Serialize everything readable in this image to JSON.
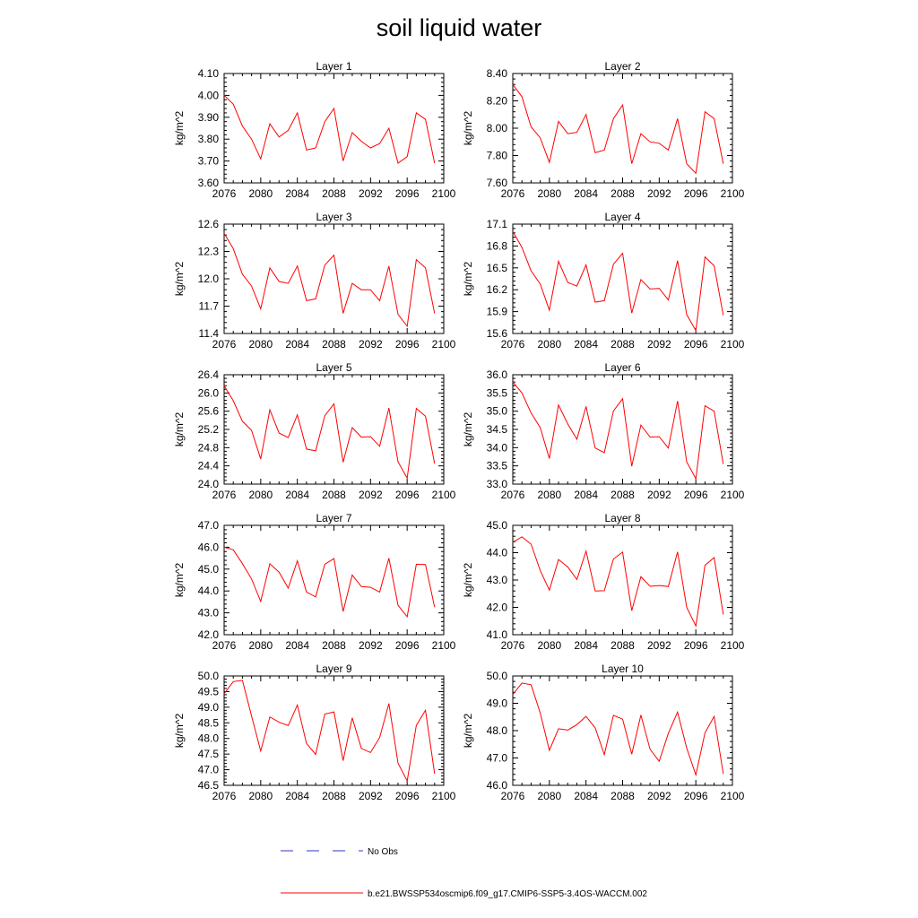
{
  "title": "soil liquid water",
  "legend": [
    {
      "label": "No Obs",
      "color": "#3333cc",
      "style": "dashed"
    },
    {
      "label": "b.e21.BWSSP534oscmip6.f09_g17.CMIP6-SSP5-3.4OS-WACCM.002",
      "color": "#ff0000",
      "style": "solid"
    }
  ],
  "chart_data": [
    {
      "type": "line",
      "title": "Layer 1",
      "ylabel": "kg/m^2",
      "xlim": [
        2076,
        2100
      ],
      "xticks": [
        "2076",
        "2080",
        "2084",
        "2088",
        "2092",
        "2096",
        "2100"
      ],
      "ylim": [
        3.6,
        4.1
      ],
      "yticks": [
        "3.60",
        "3.70",
        "3.80",
        "3.90",
        "4.00",
        "4.10"
      ],
      "x": [
        2076,
        2077,
        2078,
        2079,
        2080,
        2081,
        2082,
        2083,
        2084,
        2085,
        2086,
        2087,
        2088,
        2089,
        2090,
        2091,
        2092,
        2093,
        2094,
        2095,
        2096,
        2097,
        2098,
        2099
      ],
      "series": [
        {
          "name": "b.e21.BWSSP534oscmip6.f09_g17.CMIP6-SSP5-3.4OS-WACCM.002",
          "color": "#ff0000",
          "values": [
            4.0,
            3.96,
            3.86,
            3.8,
            3.71,
            3.87,
            3.81,
            3.84,
            3.92,
            3.75,
            3.76,
            3.88,
            3.94,
            3.7,
            3.83,
            3.79,
            3.76,
            3.78,
            3.85,
            3.69,
            3.72,
            3.92,
            3.89,
            3.69
          ]
        }
      ]
    },
    {
      "type": "line",
      "title": "Layer 2",
      "ylabel": "kg/m^2",
      "xlim": [
        2076,
        2100
      ],
      "xticks": [
        "2076",
        "2080",
        "2084",
        "2088",
        "2092",
        "2096",
        "2100"
      ],
      "ylim": [
        7.6,
        8.4
      ],
      "yticks": [
        "7.60",
        "7.80",
        "8.00",
        "8.20",
        "8.40"
      ],
      "x": [
        2076,
        2077,
        2078,
        2079,
        2080,
        2081,
        2082,
        2083,
        2084,
        2085,
        2086,
        2087,
        2088,
        2089,
        2090,
        2091,
        2092,
        2093,
        2094,
        2095,
        2096,
        2097,
        2098,
        2099
      ],
      "series": [
        {
          "name": "b.e21.BWSSP534oscmip6.f09_g17.CMIP6-SSP5-3.4OS-WACCM.002",
          "color": "#ff0000",
          "values": [
            8.32,
            8.23,
            8.01,
            7.93,
            7.75,
            8.05,
            7.96,
            7.97,
            8.1,
            7.82,
            7.84,
            8.07,
            8.17,
            7.74,
            7.96,
            7.9,
            7.89,
            7.84,
            8.07,
            7.74,
            7.67,
            8.12,
            8.07,
            7.74
          ]
        }
      ]
    },
    {
      "type": "line",
      "title": "Layer 3",
      "ylabel": "kg/m^2",
      "xlim": [
        2076,
        2100
      ],
      "xticks": [
        "2076",
        "2080",
        "2084",
        "2088",
        "2092",
        "2096",
        "2100"
      ],
      "ylim": [
        11.4,
        12.6
      ],
      "yticks": [
        "11.4",
        "11.7",
        "12.0",
        "12.3",
        "12.6"
      ],
      "x": [
        2076,
        2077,
        2078,
        2079,
        2080,
        2081,
        2082,
        2083,
        2084,
        2085,
        2086,
        2087,
        2088,
        2089,
        2090,
        2091,
        2092,
        2093,
        2094,
        2095,
        2096,
        2097,
        2098,
        2099
      ],
      "series": [
        {
          "name": "b.e21.BWSSP534oscmip6.f09_g17.CMIP6-SSP5-3.4OS-WACCM.002",
          "color": "#ff0000",
          "values": [
            12.5,
            12.33,
            12.05,
            11.92,
            11.67,
            12.12,
            11.97,
            11.95,
            12.14,
            11.76,
            11.78,
            12.15,
            12.26,
            11.62,
            11.95,
            11.88,
            11.88,
            11.76,
            12.14,
            11.61,
            11.48,
            12.21,
            12.12,
            11.62
          ]
        }
      ]
    },
    {
      "type": "line",
      "title": "Layer 4",
      "ylabel": "kg/m^2",
      "xlim": [
        2076,
        2100
      ],
      "xticks": [
        "2076",
        "2080",
        "2084",
        "2088",
        "2092",
        "2096",
        "2100"
      ],
      "ylim": [
        15.6,
        17.1
      ],
      "yticks": [
        "15.6",
        "15.9",
        "16.2",
        "16.5",
        "16.8",
        "17.1"
      ],
      "x": [
        2076,
        2077,
        2078,
        2079,
        2080,
        2081,
        2082,
        2083,
        2084,
        2085,
        2086,
        2087,
        2088,
        2089,
        2090,
        2091,
        2092,
        2093,
        2094,
        2095,
        2096,
        2097,
        2098,
        2099
      ],
      "series": [
        {
          "name": "b.e21.BWSSP534oscmip6.f09_g17.CMIP6-SSP5-3.4OS-WACCM.002",
          "color": "#ff0000",
          "values": [
            17.0,
            16.78,
            16.46,
            16.28,
            15.92,
            16.59,
            16.3,
            16.25,
            16.54,
            16.03,
            16.05,
            16.55,
            16.7,
            15.88,
            16.34,
            16.21,
            16.22,
            16.06,
            16.6,
            15.86,
            15.64,
            16.65,
            16.53,
            15.85
          ]
        }
      ]
    },
    {
      "type": "line",
      "title": "Layer 5",
      "ylabel": "kg/m^2",
      "xlim": [
        2076,
        2100
      ],
      "xticks": [
        "2076",
        "2080",
        "2084",
        "2088",
        "2092",
        "2096",
        "2100"
      ],
      "ylim": [
        24.0,
        26.4
      ],
      "yticks": [
        "24.0",
        "24.4",
        "24.8",
        "25.2",
        "25.6",
        "26.0",
        "26.4"
      ],
      "x": [
        2076,
        2077,
        2078,
        2079,
        2080,
        2081,
        2082,
        2083,
        2084,
        2085,
        2086,
        2087,
        2088,
        2089,
        2090,
        2091,
        2092,
        2093,
        2094,
        2095,
        2096,
        2097,
        2098,
        2099
      ],
      "series": [
        {
          "name": "b.e21.BWSSP534oscmip6.f09_g17.CMIP6-SSP5-3.4OS-WACCM.002",
          "color": "#ff0000",
          "values": [
            26.16,
            25.83,
            25.38,
            25.18,
            24.55,
            25.63,
            25.12,
            25.02,
            25.52,
            24.77,
            24.73,
            25.5,
            25.76,
            24.48,
            25.24,
            25.03,
            25.04,
            24.83,
            25.67,
            24.49,
            24.13,
            25.66,
            25.49,
            24.45
          ]
        }
      ]
    },
    {
      "type": "line",
      "title": "Layer 6",
      "ylabel": "kg/m^2",
      "xlim": [
        2076,
        2100
      ],
      "xticks": [
        "2076",
        "2080",
        "2084",
        "2088",
        "2092",
        "2096",
        "2100"
      ],
      "ylim": [
        33.0,
        36.0
      ],
      "yticks": [
        "33.0",
        "33.5",
        "34.0",
        "34.5",
        "35.0",
        "35.5",
        "36.0"
      ],
      "x": [
        2076,
        2077,
        2078,
        2079,
        2080,
        2081,
        2082,
        2083,
        2084,
        2085,
        2086,
        2087,
        2088,
        2089,
        2090,
        2091,
        2092,
        2093,
        2094,
        2095,
        2096,
        2097,
        2098,
        2099
      ],
      "series": [
        {
          "name": "b.e21.BWSSP534oscmip6.f09_g17.CMIP6-SSP5-3.4OS-WACCM.002",
          "color": "#ff0000",
          "values": [
            35.8,
            35.5,
            34.95,
            34.55,
            33.7,
            35.17,
            34.65,
            34.23,
            35.13,
            33.99,
            33.86,
            35.01,
            35.34,
            33.49,
            34.62,
            34.29,
            34.3,
            33.99,
            35.28,
            33.61,
            33.15,
            35.15,
            35.0,
            33.55
          ]
        }
      ]
    },
    {
      "type": "line",
      "title": "Layer 7",
      "ylabel": "kg/m^2",
      "xlim": [
        2076,
        2100
      ],
      "xticks": [
        "2076",
        "2080",
        "2084",
        "2088",
        "2092",
        "2096",
        "2100"
      ],
      "ylim": [
        42.0,
        47.0
      ],
      "yticks": [
        "42.0",
        "43.0",
        "44.0",
        "45.0",
        "46.0",
        "47.0"
      ],
      "x": [
        2076,
        2077,
        2078,
        2079,
        2080,
        2081,
        2082,
        2083,
        2084,
        2085,
        2086,
        2087,
        2088,
        2089,
        2090,
        2091,
        2092,
        2093,
        2094,
        2095,
        2096,
        2097,
        2098,
        2099
      ],
      "series": [
        {
          "name": "b.e21.BWSSP534oscmip6.f09_g17.CMIP6-SSP5-3.4OS-WACCM.002",
          "color": "#ff0000",
          "values": [
            46.0,
            45.88,
            45.25,
            44.55,
            43.52,
            45.24,
            44.86,
            44.13,
            45.38,
            43.95,
            43.73,
            45.22,
            45.48,
            43.06,
            44.73,
            44.2,
            44.17,
            43.95,
            45.5,
            43.35,
            42.82,
            45.22,
            45.21,
            43.26
          ]
        }
      ]
    },
    {
      "type": "line",
      "title": "Layer 8",
      "ylabel": "kg/m^2",
      "xlim": [
        2076,
        2100
      ],
      "xticks": [
        "2076",
        "2080",
        "2084",
        "2088",
        "2092",
        "2096",
        "2100"
      ],
      "ylim": [
        41.0,
        45.0
      ],
      "yticks": [
        "41.0",
        "42.0",
        "43.0",
        "44.0",
        "45.0"
      ],
      "x": [
        2076,
        2077,
        2078,
        2079,
        2080,
        2081,
        2082,
        2083,
        2084,
        2085,
        2086,
        2087,
        2088,
        2089,
        2090,
        2091,
        2092,
        2093,
        2094,
        2095,
        2096,
        2097,
        2098,
        2099
      ],
      "series": [
        {
          "name": "b.e21.BWSSP534oscmip6.f09_g17.CMIP6-SSP5-3.4OS-WACCM.002",
          "color": "#ff0000",
          "values": [
            44.38,
            44.58,
            44.31,
            43.35,
            42.63,
            43.75,
            43.48,
            43.02,
            44.06,
            42.6,
            42.61,
            43.77,
            44.02,
            41.88,
            43.12,
            42.77,
            42.8,
            42.76,
            44.03,
            42.0,
            41.32,
            43.54,
            43.82,
            41.74
          ]
        }
      ]
    },
    {
      "type": "line",
      "title": "Layer 9",
      "ylabel": "kg/m^2",
      "xlim": [
        2076,
        2100
      ],
      "xticks": [
        "2076",
        "2080",
        "2084",
        "2088",
        "2092",
        "2096",
        "2100"
      ],
      "ylim": [
        46.5,
        50.0
      ],
      "yticks": [
        "46.5",
        "47.0",
        "47.5",
        "48.0",
        "48.5",
        "49.0",
        "49.5",
        "50.0"
      ],
      "x": [
        2076,
        2077,
        2078,
        2079,
        2080,
        2081,
        2082,
        2083,
        2084,
        2085,
        2086,
        2087,
        2088,
        2089,
        2090,
        2091,
        2092,
        2093,
        2094,
        2095,
        2096,
        2097,
        2098,
        2099
      ],
      "series": [
        {
          "name": "b.e21.BWSSP534oscmip6.f09_g17.CMIP6-SSP5-3.4OS-WACCM.002",
          "color": "#ff0000",
          "values": [
            49.43,
            49.82,
            49.86,
            48.72,
            47.6,
            48.69,
            48.52,
            48.41,
            49.07,
            47.84,
            47.49,
            48.78,
            48.85,
            47.29,
            48.66,
            47.68,
            47.55,
            48.03,
            49.12,
            47.21,
            46.64,
            48.42,
            48.9,
            46.87
          ]
        }
      ]
    },
    {
      "type": "line",
      "title": "Layer 10",
      "ylabel": "kg/m^2",
      "xlim": [
        2076,
        2100
      ],
      "xticks": [
        "2076",
        "2080",
        "2084",
        "2088",
        "2092",
        "2096",
        "2100"
      ],
      "ylim": [
        46.0,
        50.0
      ],
      "yticks": [
        "46.0",
        "47.0",
        "48.0",
        "49.0",
        "50.0"
      ],
      "x": [
        2076,
        2077,
        2078,
        2079,
        2080,
        2081,
        2082,
        2083,
        2084,
        2085,
        2086,
        2087,
        2088,
        2089,
        2090,
        2091,
        2092,
        2093,
        2094,
        2095,
        2096,
        2097,
        2098,
        2099
      ],
      "series": [
        {
          "name": "b.e21.BWSSP534oscmip6.f09_g17.CMIP6-SSP5-3.4OS-WACCM.002",
          "color": "#ff0000",
          "values": [
            49.32,
            49.74,
            49.68,
            48.65,
            47.28,
            48.07,
            48.02,
            48.22,
            48.52,
            48.1,
            47.12,
            48.56,
            48.42,
            47.14,
            48.57,
            47.32,
            46.88,
            47.9,
            48.68,
            47.36,
            46.38,
            47.92,
            48.52,
            46.42
          ]
        }
      ]
    }
  ]
}
